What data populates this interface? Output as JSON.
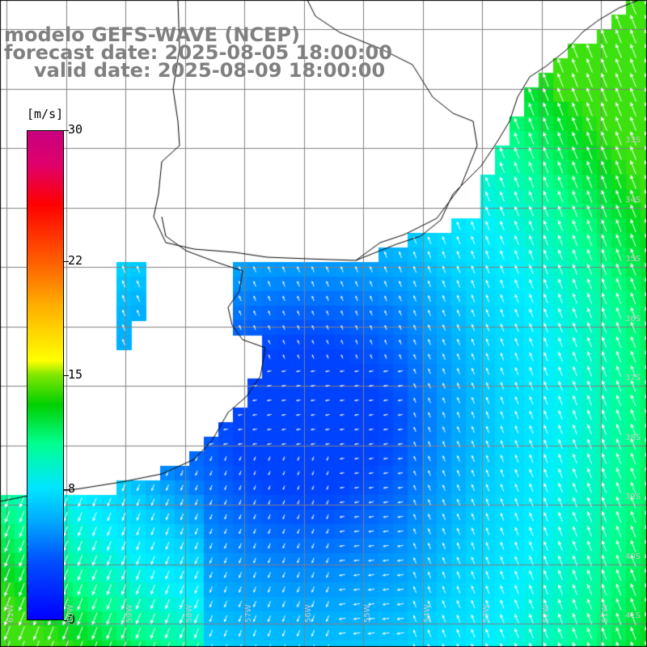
{
  "title": {
    "line1": "modelo GEFS-WAVE (NCEP)",
    "line2": "forecast date: 2025-08-05 18:00:00",
    "line3": "valid date: 2025-08-09 18:00:00"
  },
  "colorbar": {
    "unit": "[m/s]",
    "ticks": [
      {
        "label": "30",
        "value": 30
      },
      {
        "label": "22",
        "value": 22
      },
      {
        "label": "15",
        "value": 15
      },
      {
        "label": "8",
        "value": 8
      },
      {
        "label": "0",
        "value": 0
      }
    ]
  },
  "map": {
    "lon_labels": [
      "61W",
      "60W",
      "59W",
      "58W",
      "57W",
      "56W",
      "55W",
      "54W",
      "53W",
      "52W",
      "51W"
    ],
    "lat_labels": [
      "33S",
      "34S",
      "35S",
      "36S",
      "37S",
      "38S",
      "39S",
      "40S",
      "41S"
    ],
    "colors": {
      "land": "#ffffff",
      "coastline": "#000000",
      "grid": "#808080",
      "arrows": "#ffffff",
      "title": "#808080"
    }
  }
}
